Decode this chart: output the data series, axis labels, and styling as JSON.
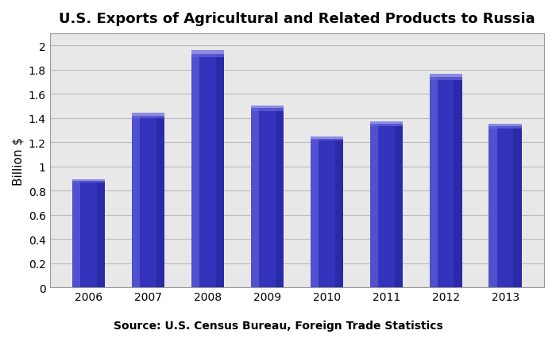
{
  "title": "U.S. Exports of Agricultural and Related Products to Russia",
  "years": [
    "2006",
    "2007",
    "2008",
    "2009",
    "2010",
    "2011",
    "2012",
    "2013"
  ],
  "values": [
    0.88,
    1.42,
    1.93,
    1.48,
    1.23,
    1.35,
    1.74,
    1.33
  ],
  "bar_color_main": "#3333BB",
  "bar_color_light": "#6666DD",
  "bar_color_dark": "#222299",
  "ylabel": "Billion $",
  "ylim": [
    0,
    2.1
  ],
  "yticks": [
    0,
    0.2,
    0.4,
    0.6,
    0.8,
    1.0,
    1.2,
    1.4,
    1.6,
    1.8,
    2.0
  ],
  "ytick_labels": [
    "0",
    "0.2",
    "0.4",
    "0.6",
    "0.8",
    "1",
    "1.2",
    "1.4",
    "1.6",
    "1.8",
    "2"
  ],
  "source_text": "Source: U.S. Census Bureau, Foreign Trade Statistics",
  "title_fontsize": 13,
  "ylabel_fontsize": 11,
  "tick_fontsize": 10,
  "source_fontsize": 10,
  "grid_color": "#BBBBBB",
  "plot_bg_color": "#E8E8E8",
  "fig_bg_color": "#FFFFFF",
  "bar_width": 0.55
}
